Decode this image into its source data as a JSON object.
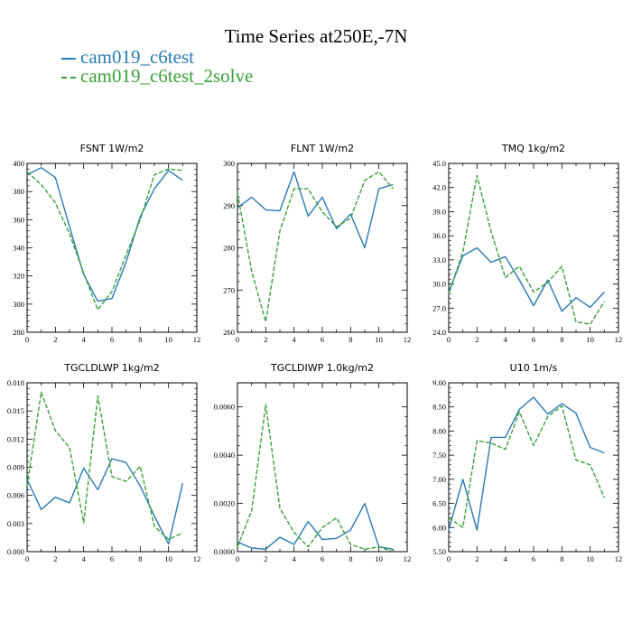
{
  "title": "Time Series at250E,-7N",
  "legend": [
    {
      "name": "cam019_c6test",
      "color": "#2a7ab4",
      "dash": "solid"
    },
    {
      "name": "cam019_c6test_2solve",
      "color": "#3aa13a",
      "dash": "dashed"
    }
  ],
  "chart_data": [
    {
      "type": "line",
      "title": "FSNT   1W/m2",
      "x": [
        0,
        1,
        2,
        3,
        4,
        5,
        6,
        7,
        8,
        9,
        10,
        11
      ],
      "xlim": [
        0,
        12
      ],
      "xticks": [
        "0",
        "2",
        "4",
        "6",
        "8",
        "10",
        "12"
      ],
      "ylim": [
        280,
        400
      ],
      "yticks": [
        "280",
        "300",
        "320",
        "340",
        "360",
        "380",
        "400"
      ],
      "series": [
        {
          "name": "cam019_c6test",
          "values": [
            392,
            397,
            390,
            355,
            321,
            302,
            304,
            330,
            362,
            382,
            395,
            388
          ]
        },
        {
          "name": "cam019_c6test_2solve",
          "values": [
            394,
            385,
            372,
            350,
            322,
            296,
            309,
            335,
            360,
            392,
            396,
            395
          ]
        }
      ]
    },
    {
      "type": "line",
      "title": "FLNT   1W/m2",
      "x": [
        0,
        1,
        2,
        3,
        4,
        5,
        6,
        7,
        8,
        9,
        10,
        11
      ],
      "xlim": [
        0,
        12
      ],
      "xticks": [
        "0",
        "2",
        "4",
        "6",
        "8",
        "10",
        "12"
      ],
      "ylim": [
        260,
        300
      ],
      "yticks": [
        "260",
        "270",
        "280",
        "290",
        "300"
      ],
      "series": [
        {
          "name": "cam019_c6test",
          "values": [
            289.5,
            292,
            289,
            288.8,
            298,
            287.5,
            292,
            284.5,
            288,
            280,
            294,
            295
          ]
        },
        {
          "name": "cam019_c6test_2solve",
          "values": [
            293,
            274.5,
            262.5,
            284,
            294,
            294,
            288.5,
            285,
            287,
            296,
            298,
            294
          ]
        }
      ]
    },
    {
      "type": "line",
      "title": "TMQ   1kg/m2",
      "x": [
        0,
        1,
        2,
        3,
        4,
        5,
        6,
        7,
        8,
        9,
        10,
        11
      ],
      "xlim": [
        0,
        12
      ],
      "xticks": [
        "0",
        "2",
        "4",
        "6",
        "8",
        "10",
        "12"
      ],
      "ylim": [
        24,
        45
      ],
      "yticks": [
        "24.0",
        "27.0",
        "30.0",
        "33.0",
        "36.0",
        "39.0",
        "42.0",
        "45.0"
      ],
      "series": [
        {
          "name": "cam019_c6test",
          "values": [
            29,
            33.5,
            34.5,
            32.7,
            33.4,
            30.5,
            27.3,
            30.5,
            26.6,
            28.3,
            27.1,
            29
          ]
        },
        {
          "name": "cam019_c6test_2solve",
          "values": [
            28.8,
            34,
            43.5,
            36.5,
            30.8,
            32.2,
            29,
            30.2,
            32.2,
            25.3,
            25,
            27.8
          ]
        }
      ]
    },
    {
      "type": "line",
      "title": "TGCLDLWP   1kg/m2",
      "x": [
        0,
        1,
        2,
        3,
        4,
        5,
        6,
        7,
        8,
        9,
        10,
        11
      ],
      "xlim": [
        0,
        12
      ],
      "xticks": [
        "0",
        "2",
        "4",
        "6",
        "8",
        "10",
        "12"
      ],
      "ylim": [
        0,
        0.018
      ],
      "yticks": [
        "0.000",
        "0.003",
        "0.006",
        "0.009",
        "0.012",
        "0.015",
        "0.018"
      ],
      "series": [
        {
          "name": "cam019_c6test",
          "values": [
            0.0077,
            0.0045,
            0.0058,
            0.0052,
            0.0089,
            0.0066,
            0.0099,
            0.0095,
            0.007,
            0.0038,
            0.0008,
            0.0073
          ]
        },
        {
          "name": "cam019_c6test_2solve",
          "values": [
            0.007,
            0.017,
            0.0129,
            0.0111,
            0.0031,
            0.0166,
            0.008,
            0.0075,
            0.0091,
            0.0027,
            0.0013,
            0.002
          ]
        }
      ]
    },
    {
      "type": "line",
      "title": "TGCLDIWP   1.0kg/m2",
      "x": [
        0,
        1,
        2,
        3,
        4,
        5,
        6,
        7,
        8,
        9,
        10,
        11
      ],
      "xlim": [
        0,
        12
      ],
      "xticks": [
        "0",
        "2",
        "4",
        "6",
        "8",
        "10",
        "12"
      ],
      "ylim": [
        0,
        0.007
      ],
      "yticks": [
        "0.0000",
        "0.0020",
        "0.0040",
        "0.0060"
      ],
      "series": [
        {
          "name": "cam019_c6test",
          "values": [
            0.0004,
            0.00015,
            0.0001,
            0.0006,
            0.0003,
            0.00125,
            0.0005,
            0.00055,
            0.0009,
            0.002,
            0.0002,
            0.0001
          ]
        },
        {
          "name": "cam019_c6test_2solve",
          "values": [
            0.0002,
            0.0017,
            0.0061,
            0.0018,
            0.0008,
            0.0002,
            0.001,
            0.0014,
            0.0003,
            0.0001,
            0.0002,
            0.0
          ]
        }
      ]
    },
    {
      "type": "line",
      "title": "U10   1m/s",
      "x": [
        0,
        1,
        2,
        3,
        4,
        5,
        6,
        7,
        8,
        9,
        10,
        11
      ],
      "xlim": [
        0,
        12
      ],
      "xticks": [
        "0",
        "2",
        "4",
        "6",
        "8",
        "10",
        "12"
      ],
      "ylim": [
        5.5,
        9
      ],
      "yticks": [
        "5.50",
        "6.00",
        "6.50",
        "7.00",
        "7.50",
        "8.00",
        "8.50",
        "9.00"
      ],
      "series": [
        {
          "name": "cam019_c6test",
          "values": [
            5.95,
            7,
            5.95,
            7.87,
            7.87,
            8.45,
            8.7,
            8.35,
            8.57,
            8.37,
            7.66,
            7.55
          ]
        },
        {
          "name": "cam019_c6test_2solve",
          "values": [
            6.2,
            6.0,
            7.8,
            7.75,
            7.62,
            8.4,
            7.7,
            8.3,
            8.52,
            7.4,
            7.3,
            6.62
          ]
        }
      ]
    }
  ]
}
